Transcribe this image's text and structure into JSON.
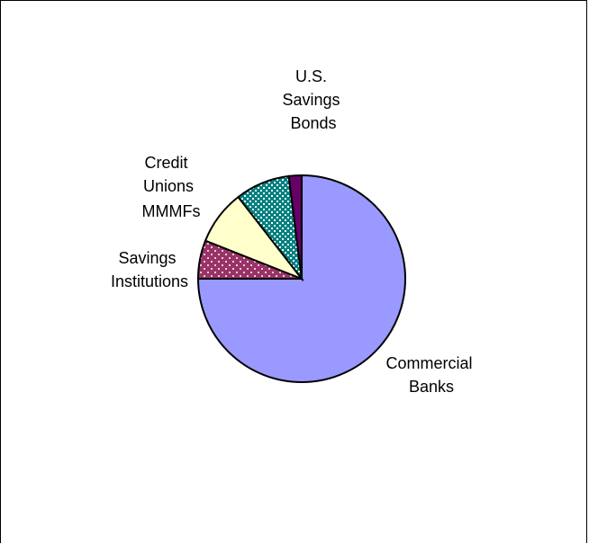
{
  "chart_data": {
    "type": "pie",
    "title": "",
    "slices": [
      {
        "label": "Commercial Banks",
        "label_lines": [
          "Commercial",
          "Banks"
        ],
        "value": 75.0,
        "color": "#9999ff",
        "pattern": "solid"
      },
      {
        "label": "Savings Institutions",
        "label_lines": [
          "Savings",
          "Institutions"
        ],
        "value": 6.0,
        "color": "#993366",
        "pattern": "white-dots"
      },
      {
        "label": "MMMFs",
        "label_lines": [
          "MMMFs"
        ],
        "value": 8.5,
        "color": "#ffffcc",
        "pattern": "solid"
      },
      {
        "label": "Credit Unions",
        "label_lines": [
          "Credit",
          "Unions"
        ],
        "value": 8.5,
        "color": "#008080",
        "pattern": "white-mesh"
      },
      {
        "label": "U.S. Savings Bonds",
        "label_lines": [
          "U.S.",
          "Savings",
          "Bonds"
        ],
        "value": 2.0,
        "color": "#660066",
        "pattern": "solid"
      }
    ],
    "start_angle_deg": 90,
    "direction": "clockwise",
    "legend": "none",
    "grid": false
  }
}
